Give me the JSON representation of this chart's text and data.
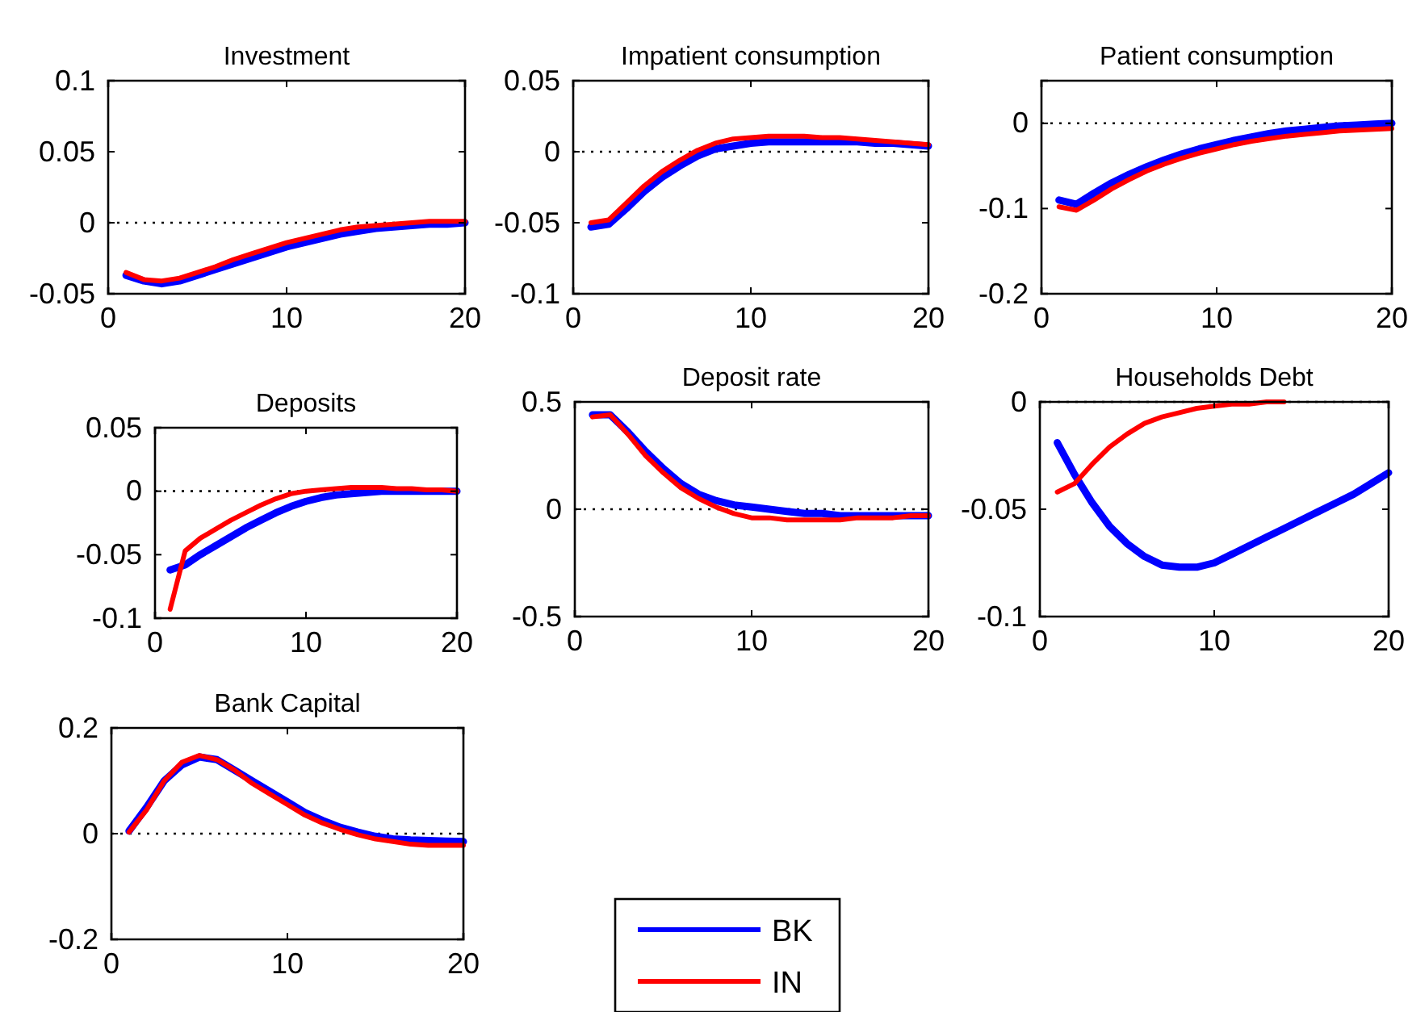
{
  "chart_data": [
    {
      "type": "line",
      "title": "Investment",
      "x": [
        1,
        2,
        3,
        4,
        5,
        6,
        7,
        8,
        9,
        10,
        11,
        12,
        13,
        14,
        15,
        16,
        17,
        18,
        19,
        20
      ],
      "xlim": [
        0,
        20
      ],
      "xticks": [
        0,
        10,
        20
      ],
      "ylim": [
        -0.05,
        0.1
      ],
      "yticks": [
        -0.05,
        0,
        0.05,
        0.1
      ],
      "ref_lines": [
        {
          "axis": "y",
          "value": 0,
          "line_style": "dotted"
        }
      ],
      "series": [
        {
          "color": "#0000ff",
          "values": [
            -0.037,
            -0.041,
            -0.043,
            -0.041,
            -0.037,
            -0.033,
            -0.029,
            -0.025,
            -0.021,
            -0.017,
            -0.014,
            -0.011,
            -0.008,
            -0.006,
            -0.004,
            -0.003,
            -0.002,
            -0.001,
            -0.001,
            0
          ]
        },
        {
          "color": "#ff0000",
          "values": [
            -0.035,
            -0.04,
            -0.041,
            -0.039,
            -0.035,
            -0.031,
            -0.026,
            -0.022,
            -0.018,
            -0.014,
            -0.011,
            -0.008,
            -0.005,
            -0.003,
            -0.002,
            -0.001,
            0,
            0.001,
            0.001,
            0.001
          ]
        }
      ]
    },
    {
      "type": "line",
      "title": "Impatient consumption",
      "x": [
        1,
        2,
        3,
        4,
        5,
        6,
        7,
        8,
        9,
        10,
        11,
        12,
        13,
        14,
        15,
        16,
        17,
        18,
        19,
        20
      ],
      "xlim": [
        0,
        20
      ],
      "xticks": [
        0,
        10,
        20
      ],
      "ylim": [
        -0.1,
        0.05
      ],
      "yticks": [
        -0.1,
        -0.05,
        0,
        0.05
      ],
      "ref_lines": [
        {
          "axis": "y",
          "value": 0,
          "line_style": "dotted"
        }
      ],
      "series": [
        {
          "color": "#0000ff",
          "values": [
            -0.053,
            -0.051,
            -0.04,
            -0.028,
            -0.018,
            -0.01,
            -0.003,
            0.002,
            0.004,
            0.006,
            0.007,
            0.007,
            0.007,
            0.007,
            0.007,
            0.007,
            0.006,
            0.006,
            0.005,
            0.004
          ]
        },
        {
          "color": "#ff0000",
          "values": [
            -0.05,
            -0.048,
            -0.036,
            -0.024,
            -0.014,
            -0.006,
            0.001,
            0.006,
            0.009,
            0.01,
            0.011,
            0.011,
            0.011,
            0.01,
            0.01,
            0.009,
            0.008,
            0.007,
            0.006,
            0.005
          ]
        }
      ]
    },
    {
      "type": "line",
      "title": "Patient consumption",
      "x": [
        1,
        2,
        3,
        4,
        5,
        6,
        7,
        8,
        9,
        10,
        11,
        12,
        13,
        14,
        15,
        16,
        17,
        18,
        19,
        20
      ],
      "xlim": [
        0,
        20
      ],
      "xticks": [
        0,
        10,
        20
      ],
      "ylim": [
        -0.2,
        0.05
      ],
      "yticks": [
        -0.2,
        -0.1,
        0
      ],
      "ref_lines": [
        {
          "axis": "y",
          "value": 0,
          "line_style": "dotted"
        }
      ],
      "series": [
        {
          "color": "#0000ff",
          "values": [
            -0.09,
            -0.095,
            -0.082,
            -0.07,
            -0.06,
            -0.051,
            -0.043,
            -0.036,
            -0.03,
            -0.025,
            -0.02,
            -0.016,
            -0.012,
            -0.009,
            -0.007,
            -0.005,
            -0.003,
            -0.002,
            -0.001,
            0
          ]
        },
        {
          "color": "#ff0000",
          "values": [
            -0.098,
            -0.102,
            -0.09,
            -0.077,
            -0.066,
            -0.056,
            -0.048,
            -0.041,
            -0.035,
            -0.03,
            -0.025,
            -0.021,
            -0.018,
            -0.015,
            -0.013,
            -0.011,
            -0.009,
            -0.008,
            -0.007,
            -0.006
          ]
        }
      ]
    },
    {
      "type": "line",
      "title": "Deposits",
      "x": [
        1,
        2,
        3,
        4,
        5,
        6,
        7,
        8,
        9,
        10,
        11,
        12,
        13,
        14,
        15,
        16,
        17,
        18,
        19,
        20
      ],
      "xlim": [
        0,
        20
      ],
      "xticks": [
        0,
        10,
        20
      ],
      "ylim": [
        -0.1,
        0.05
      ],
      "yticks": [
        -0.1,
        -0.05,
        0,
        0.05
      ],
      "ref_lines": [
        {
          "axis": "y",
          "value": 0,
          "line_style": "dotted"
        }
      ],
      "series": [
        {
          "color": "#0000ff",
          "values": [
            -0.062,
            -0.058,
            -0.05,
            -0.043,
            -0.036,
            -0.029,
            -0.023,
            -0.017,
            -0.012,
            -0.008,
            -0.005,
            -0.003,
            -0.002,
            -0.001,
            0,
            0,
            0,
            0,
            0,
            0
          ]
        },
        {
          "color": "#ff0000",
          "values": [
            -0.093,
            -0.047,
            -0.037,
            -0.03,
            -0.023,
            -0.017,
            -0.011,
            -0.006,
            -0.002,
            0,
            0.001,
            0.002,
            0.003,
            0.003,
            0.003,
            0.002,
            0.002,
            0.001,
            0.001,
            0
          ]
        }
      ]
    },
    {
      "type": "line",
      "title": "Deposit rate",
      "x": [
        1,
        2,
        3,
        4,
        5,
        6,
        7,
        8,
        9,
        10,
        11,
        12,
        13,
        14,
        15,
        16,
        17,
        18,
        19,
        20
      ],
      "xlim": [
        0,
        20
      ],
      "xticks": [
        0,
        10,
        20
      ],
      "ylim": [
        -0.5,
        0.5
      ],
      "yticks": [
        -0.5,
        0,
        0.5
      ],
      "ref_lines": [
        {
          "axis": "y",
          "value": 0,
          "line_style": "dotted"
        }
      ],
      "series": [
        {
          "color": "#0000ff",
          "values": [
            0.44,
            0.44,
            0.36,
            0.27,
            0.19,
            0.12,
            0.07,
            0.04,
            0.02,
            0.01,
            0,
            -0.01,
            -0.02,
            -0.02,
            -0.03,
            -0.03,
            -0.03,
            -0.03,
            -0.03,
            -0.03
          ]
        },
        {
          "color": "#ff0000",
          "values": [
            0.43,
            0.44,
            0.35,
            0.25,
            0.17,
            0.1,
            0.05,
            0.01,
            -0.02,
            -0.04,
            -0.04,
            -0.05,
            -0.05,
            -0.05,
            -0.05,
            -0.04,
            -0.04,
            -0.04,
            -0.03,
            -0.03
          ]
        }
      ]
    },
    {
      "type": "line",
      "title": "Households Debt",
      "x": [
        1,
        2,
        3,
        4,
        5,
        6,
        7,
        8,
        9,
        10,
        11,
        12,
        13,
        14,
        15,
        16,
        17,
        18,
        19,
        20
      ],
      "xlim": [
        0,
        20
      ],
      "xticks": [
        0,
        10,
        20
      ],
      "ylim": [
        -0.1,
        0
      ],
      "yticks": [
        -0.1,
        -0.05,
        0
      ],
      "ref_lines": [
        {
          "axis": "y",
          "value": 0,
          "line_style": "dotted"
        }
      ],
      "series": [
        {
          "color": "#0000ff",
          "values": [
            -0.019,
            -0.034,
            -0.047,
            -0.058,
            -0.066,
            -0.072,
            -0.076,
            -0.077,
            -0.077,
            -0.075,
            -0.071,
            -0.067,
            -0.063,
            -0.059,
            -0.055,
            -0.051,
            -0.047,
            -0.043,
            -0.038,
            -0.033
          ]
        },
        {
          "color": "#ff0000",
          "values": [
            -0.042,
            -0.038,
            -0.029,
            -0.021,
            -0.015,
            -0.01,
            -0.007,
            -0.005,
            -0.003,
            -0.002,
            -0.001,
            -0.001,
            0,
            0,
            null,
            null,
            null,
            null,
            null,
            null
          ]
        }
      ]
    },
    {
      "type": "line",
      "title": "Bank Capital",
      "x": [
        1,
        2,
        3,
        4,
        5,
        6,
        7,
        8,
        9,
        10,
        11,
        12,
        13,
        14,
        15,
        16,
        17,
        18,
        19,
        20
      ],
      "xlim": [
        0,
        20
      ],
      "xticks": [
        0,
        10,
        20
      ],
      "ylim": [
        -0.2,
        0.2
      ],
      "yticks": [
        -0.2,
        0,
        0.2
      ],
      "ref_lines": [
        {
          "axis": "y",
          "value": 0,
          "line_style": "dotted"
        }
      ],
      "legend": "bottom right",
      "series": [
        {
          "name": "BK",
          "color": "#0000ff",
          "values": [
            0.005,
            0.05,
            0.1,
            0.13,
            0.145,
            0.14,
            0.12,
            0.1,
            0.08,
            0.06,
            0.04,
            0.025,
            0.012,
            0.003,
            -0.005,
            -0.01,
            -0.012,
            -0.013,
            -0.014,
            -0.015
          ]
        },
        {
          "name": "IN",
          "color": "#ff0000",
          "values": [
            0.003,
            0.045,
            0.1,
            0.135,
            0.148,
            0.14,
            0.12,
            0.095,
            0.075,
            0.055,
            0.035,
            0.02,
            0.008,
            -0.002,
            -0.01,
            -0.015,
            -0.02,
            -0.022,
            -0.022,
            -0.022
          ]
        }
      ]
    }
  ]
}
